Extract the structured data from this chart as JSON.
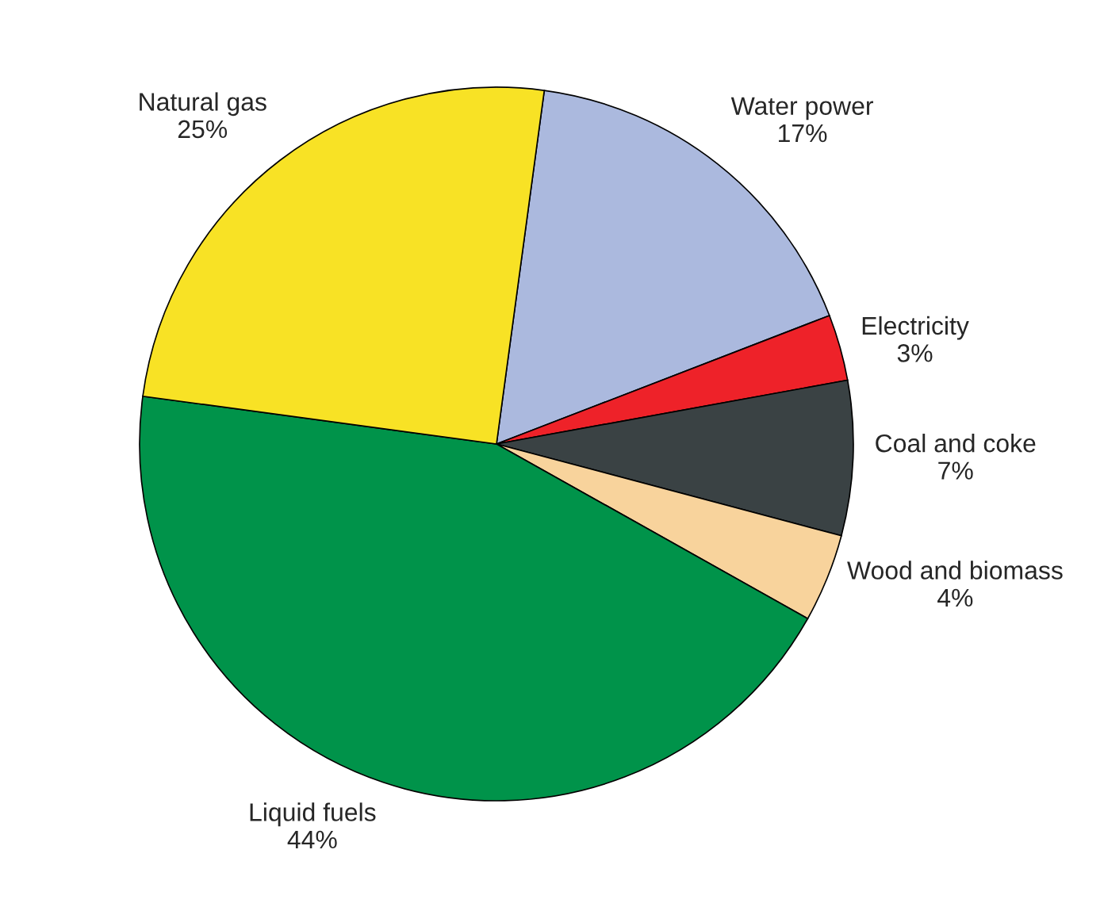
{
  "chart_data": {
    "type": "pie",
    "categories": [
      "Water power",
      "Electricity",
      "Coal and coke",
      "Wood and biomass",
      "Liquid fuels",
      "Natural gas"
    ],
    "values": [
      17,
      3,
      7,
      4,
      44,
      25
    ],
    "value_labels": [
      "17%",
      "3%",
      "7%",
      "4%",
      "44%",
      "25%"
    ],
    "colors": [
      "#abb9de",
      "#ee2229",
      "#3a4244",
      "#f8d39c",
      "#00934a",
      "#f8e225"
    ]
  }
}
